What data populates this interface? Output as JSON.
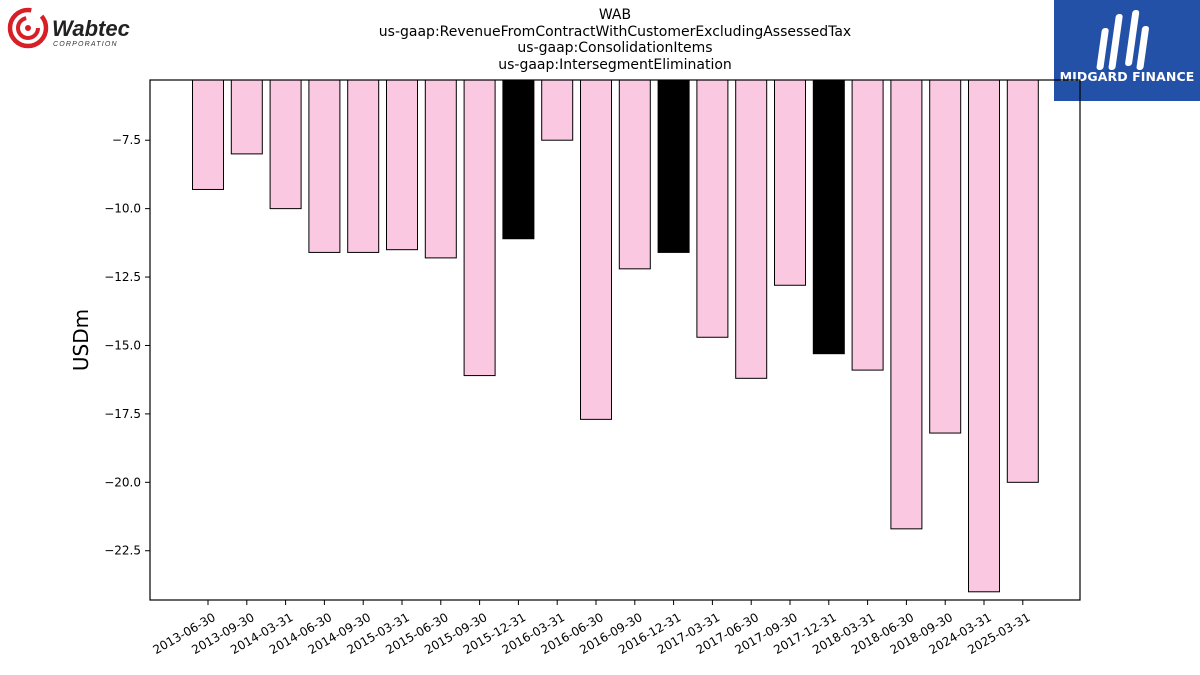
{
  "header": {
    "title_lines": [
      "WAB",
      "us-gaap:RevenueFromContractWithCustomerExcludingAssessedTax",
      "us-gaap:ConsolidationItems",
      "us-gaap:IntersegmentElimination"
    ]
  },
  "logos": {
    "left_wordmark": "Wabtec",
    "left_subtitle": "CORPORATION",
    "right_brand": "MIDGARD FINANCE"
  },
  "colors": {
    "bar_default": "#fbc8e1",
    "bar_highlight": "#000000",
    "logo_red": "#d71f26",
    "brand_blue": "#2451a8"
  },
  "chart_data": {
    "type": "bar",
    "ylabel": "USDm",
    "xlabel": "",
    "ylim": [
      -24.3,
      -5.3
    ],
    "yticks": [
      -7.5,
      -10.0,
      -12.5,
      -15.0,
      -17.5,
      -20.0,
      -22.5
    ],
    "ytick_labels": [
      "−7.5",
      "−10.0",
      "−12.5",
      "−15.0",
      "−17.5",
      "−20.0",
      "−22.5"
    ],
    "categories": [
      "2013-06-30",
      "2013-09-30",
      "2014-03-31",
      "2014-06-30",
      "2014-09-30",
      "2015-03-31",
      "2015-06-30",
      "2015-09-30",
      "2015-12-31",
      "2016-03-31",
      "2016-06-30",
      "2016-09-30",
      "2016-12-31",
      "2017-03-31",
      "2017-06-30",
      "2017-09-30",
      "2017-12-31",
      "2018-03-31",
      "2018-06-30",
      "2018-09-30",
      "2024-03-31",
      "2025-03-31"
    ],
    "values": [
      -9.3,
      -8.0,
      -10.0,
      -11.6,
      -11.6,
      -11.5,
      -11.8,
      -16.1,
      -11.1,
      -7.5,
      -17.7,
      -12.2,
      -11.6,
      -14.7,
      -16.2,
      -12.8,
      -15.3,
      -15.9,
      -21.7,
      -18.2,
      -24.0,
      -20.0
    ],
    "highlight": [
      false,
      false,
      false,
      false,
      false,
      false,
      false,
      false,
      true,
      false,
      false,
      false,
      true,
      false,
      false,
      false,
      true,
      false,
      false,
      false,
      false,
      false
    ],
    "grid": false,
    "legend": "none"
  }
}
